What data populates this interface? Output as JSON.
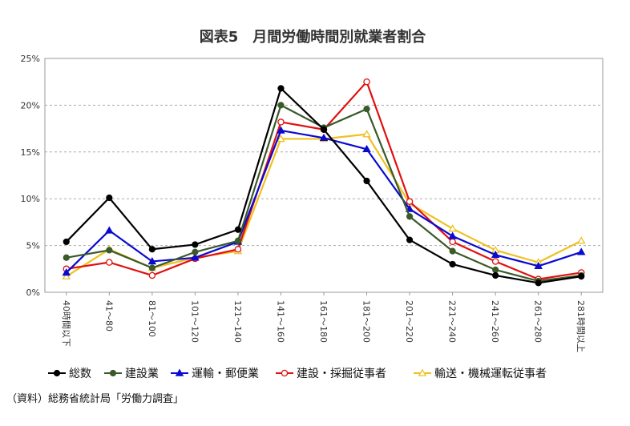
{
  "chart_data": {
    "type": "line",
    "title": "図表5　月間労働時間別就業者割合",
    "xlabel": "",
    "ylabel": "",
    "ylim": [
      0,
      25
    ],
    "yticks": [
      "0%",
      "5%",
      "10%",
      "15%",
      "20%",
      "25%"
    ],
    "y_tick_values": [
      0,
      5,
      10,
      15,
      20,
      25
    ],
    "grid": "horizontal-dashed",
    "legend_position": "bottom",
    "categories": [
      "40時間以下",
      "41～80",
      "81～100",
      "101～120",
      "121～140",
      "141～160",
      "161～180",
      "181～200",
      "201～220",
      "221～240",
      "241～260",
      "261～280",
      "281時間以上"
    ],
    "series": [
      {
        "name": "総数",
        "color": "#000000",
        "marker": "filled-circle",
        "values": [
          5.4,
          10.1,
          4.6,
          5.1,
          6.7,
          21.8,
          17.4,
          11.9,
          5.6,
          3.0,
          1.8,
          1.0,
          1.7
        ]
      },
      {
        "name": "建設業",
        "color": "#3a5a2a",
        "marker": "filled-circle",
        "values": [
          3.7,
          4.5,
          2.6,
          4.3,
          5.5,
          20.0,
          17.6,
          19.6,
          8.1,
          4.4,
          2.4,
          1.2,
          1.8
        ]
      },
      {
        "name": "運輸・郵便業",
        "color": "#0a0ad0",
        "marker": "filled-triangle",
        "values": [
          2.1,
          6.6,
          3.3,
          3.7,
          5.4,
          17.3,
          16.5,
          15.3,
          8.9,
          6.0,
          4.0,
          2.8,
          4.3
        ]
      },
      {
        "name": "建設・採掘従事者",
        "color": "#e01010",
        "marker": "open-circle",
        "values": [
          2.5,
          3.2,
          1.8,
          3.6,
          4.6,
          18.2,
          17.4,
          22.5,
          9.7,
          5.4,
          3.3,
          1.4,
          2.1
        ]
      },
      {
        "name": "輸送・機械運転従事者",
        "color": "#f0c020",
        "marker": "open-triangle",
        "values": [
          1.7,
          4.6,
          2.6,
          3.7,
          4.4,
          16.4,
          16.4,
          16.9,
          9.5,
          6.8,
          4.5,
          3.2,
          5.5
        ]
      }
    ],
    "source": "（資料）総務省統計局「労働力調査」"
  }
}
